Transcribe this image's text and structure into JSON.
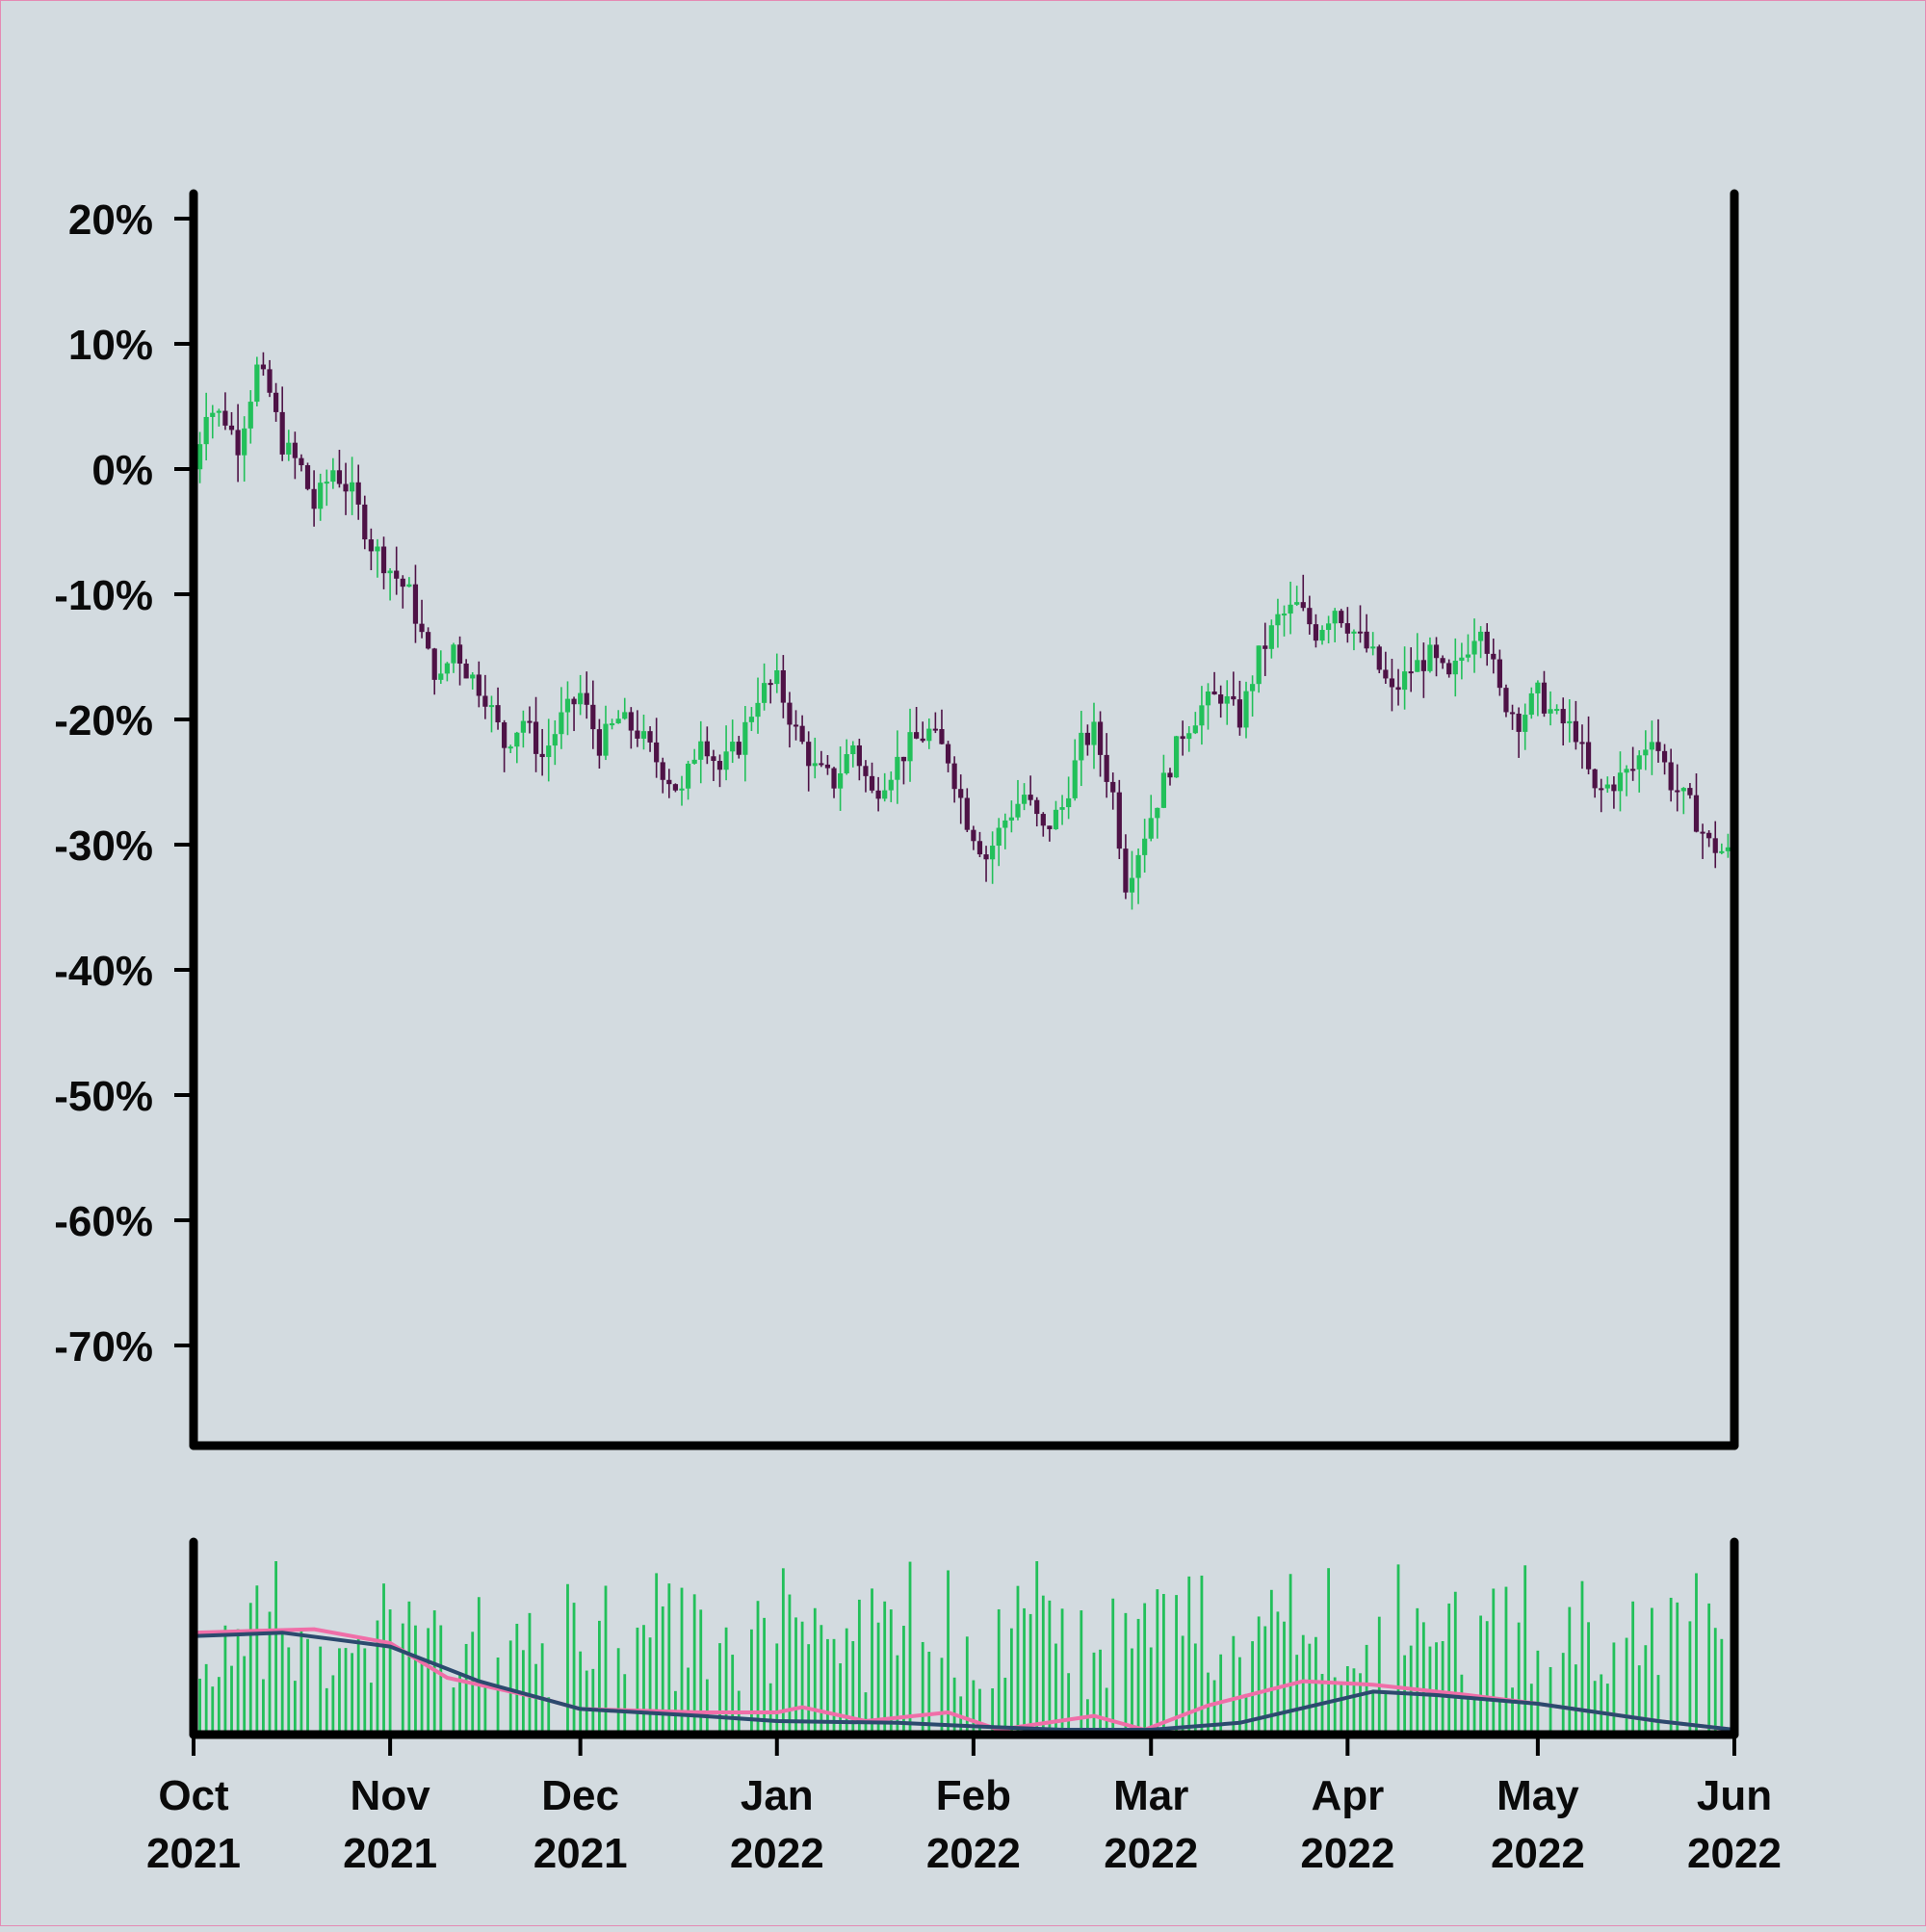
{
  "colors": {
    "background": "#d3dbe0",
    "border": "#e48ab4",
    "axis": "#000000",
    "up": "#22c05a",
    "down": "#4e1246",
    "volume": "#22c05a",
    "ma_fast": "#f06ea8",
    "ma_slow": "#2c4a6e"
  },
  "chart_data": [
    {
      "type": "candlestick",
      "title": "",
      "xlabel": "",
      "ylabel": "",
      "x_range": [
        "2021-10-01",
        "2022-06-01"
      ],
      "ylim": [
        -78,
        22
      ],
      "y_ticks": [
        20,
        10,
        0,
        -10,
        -20,
        -30,
        -40,
        -50,
        -60,
        -70
      ],
      "y_tick_labels": [
        "20%",
        "10%",
        "0%",
        "-10%",
        "-20%",
        "-30%",
        "-40%",
        "-50%",
        "-60%",
        "-70%"
      ],
      "x_ticks": [
        "2021-10-01",
        "2021-11-01",
        "2021-12-01",
        "2022-01-01",
        "2022-02-01",
        "2022-03-01",
        "2022-04-01",
        "2022-05-01",
        "2022-06-01"
      ],
      "x_tick_labels": [
        [
          "Oct",
          "2021"
        ],
        [
          "Nov",
          "2021"
        ],
        [
          "Dec",
          "2021"
        ],
        [
          "Jan",
          "2022"
        ],
        [
          "Feb",
          "2022"
        ],
        [
          "Mar",
          "2022"
        ],
        [
          "Apr",
          "2022"
        ],
        [
          "May",
          "2022"
        ],
        [
          "Jun",
          "2022"
        ]
      ],
      "grid": false,
      "close_path": [
        [
          "2021-10-01",
          0
        ],
        [
          "2021-10-03",
          5
        ],
        [
          "2021-10-06",
          4
        ],
        [
          "2021-10-08",
          2
        ],
        [
          "2021-10-11",
          8
        ],
        [
          "2021-10-13",
          6
        ],
        [
          "2021-10-15",
          2
        ],
        [
          "2021-10-18",
          0
        ],
        [
          "2021-10-20",
          -3
        ],
        [
          "2021-10-23",
          0
        ],
        [
          "2021-10-26",
          -2
        ],
        [
          "2021-10-29",
          -6
        ],
        [
          "2021-11-01",
          -8
        ],
        [
          "2021-11-04",
          -10
        ],
        [
          "2021-11-07",
          -15
        ],
        [
          "2021-11-09",
          -17
        ],
        [
          "2021-11-11",
          -14
        ],
        [
          "2021-11-13",
          -16
        ],
        [
          "2021-11-16",
          -18
        ],
        [
          "2021-11-19",
          -22
        ],
        [
          "2021-11-22",
          -20
        ],
        [
          "2021-11-25",
          -23
        ],
        [
          "2021-11-28",
          -20
        ],
        [
          "2021-12-01",
          -18
        ],
        [
          "2021-12-04",
          -22
        ],
        [
          "2021-12-07",
          -20
        ],
        [
          "2021-12-10",
          -21
        ],
        [
          "2021-12-14",
          -24
        ],
        [
          "2021-12-17",
          -26
        ],
        [
          "2021-12-20",
          -21
        ],
        [
          "2021-12-23",
          -24
        ],
        [
          "2021-12-26",
          -22
        ],
        [
          "2021-12-29",
          -18
        ],
        [
          "2022-01-01",
          -17
        ],
        [
          "2022-01-04",
          -21
        ],
        [
          "2022-01-07",
          -24
        ],
        [
          "2022-01-10",
          -25
        ],
        [
          "2022-01-13",
          -22
        ],
        [
          "2022-01-16",
          -26
        ],
        [
          "2022-01-19",
          -24
        ],
        [
          "2022-01-22",
          -22
        ],
        [
          "2022-01-25",
          -21
        ],
        [
          "2022-01-28",
          -23
        ],
        [
          "2022-01-31",
          -28
        ],
        [
          "2022-02-03",
          -31
        ],
        [
          "2022-02-06",
          -28
        ],
        [
          "2022-02-09",
          -26
        ],
        [
          "2022-02-12",
          -29
        ],
        [
          "2022-02-15",
          -27
        ],
        [
          "2022-02-18",
          -22
        ],
        [
          "2022-02-20",
          -21
        ],
        [
          "2022-02-23",
          -26
        ],
        [
          "2022-02-25",
          -33
        ],
        [
          "2022-02-28",
          -29
        ],
        [
          "2022-03-03",
          -25
        ],
        [
          "2022-03-06",
          -21
        ],
        [
          "2022-03-09",
          -19
        ],
        [
          "2022-03-12",
          -18
        ],
        [
          "2022-03-15",
          -20
        ],
        [
          "2022-03-18",
          -15
        ],
        [
          "2022-03-21",
          -12
        ],
        [
          "2022-03-24",
          -11
        ],
        [
          "2022-03-27",
          -13
        ],
        [
          "2022-03-30",
          -11
        ],
        [
          "2022-04-02",
          -13
        ],
        [
          "2022-04-05",
          -15
        ],
        [
          "2022-04-08",
          -18
        ],
        [
          "2022-04-11",
          -16
        ],
        [
          "2022-04-14",
          -15
        ],
        [
          "2022-04-17",
          -17
        ],
        [
          "2022-04-20",
          -14
        ],
        [
          "2022-04-22",
          -12
        ],
        [
          "2022-04-25",
          -18
        ],
        [
          "2022-04-28",
          -20
        ],
        [
          "2022-05-01",
          -18
        ],
        [
          "2022-05-04",
          -20
        ],
        [
          "2022-05-07",
          -21
        ],
        [
          "2022-05-10",
          -26
        ],
        [
          "2022-05-13",
          -25
        ],
        [
          "2022-05-16",
          -24
        ],
        [
          "2022-05-19",
          -21
        ],
        [
          "2022-05-22",
          -25
        ],
        [
          "2022-05-25",
          -27
        ],
        [
          "2022-05-28",
          -30
        ],
        [
          "2022-06-01",
          -31
        ]
      ]
    },
    {
      "type": "bar",
      "title": "",
      "xlabel": "",
      "ylabel": "",
      "series": [
        {
          "kind": "bar",
          "values_description_note": ""
        },
        {
          "kind": "line",
          "color_key": "ma_fast",
          "points": [
            [
              "2021-10-01",
              0.56
            ],
            [
              "2021-10-20",
              0.58
            ],
            [
              "2021-11-01",
              0.5
            ],
            [
              "2021-11-10",
              0.3
            ],
            [
              "2021-11-25",
              0.18
            ],
            [
              "2021-12-01",
              0.12
            ],
            [
              "2021-12-20",
              0.1
            ],
            [
              "2022-01-01",
              0.1
            ],
            [
              "2022-01-05",
              0.13
            ],
            [
              "2022-01-15",
              0.05
            ],
            [
              "2022-01-28",
              0.1
            ],
            [
              "2022-02-05",
              0.0
            ],
            [
              "2022-02-20",
              0.08
            ],
            [
              "2022-02-28",
              0.0
            ],
            [
              "2022-03-10",
              0.14
            ],
            [
              "2022-03-25",
              0.28
            ],
            [
              "2022-04-05",
              0.26
            ],
            [
              "2022-04-20",
              0.2
            ],
            [
              "2022-05-01",
              0.15
            ],
            [
              "2022-05-20",
              0.05
            ],
            [
              "2022-06-01",
              0.0
            ]
          ]
        },
        {
          "kind": "line",
          "color_key": "ma_slow",
          "points": [
            [
              "2021-10-01",
              0.54
            ],
            [
              "2021-10-15",
              0.56
            ],
            [
              "2021-11-01",
              0.48
            ],
            [
              "2021-11-15",
              0.28
            ],
            [
              "2021-12-01",
              0.12
            ],
            [
              "2021-12-20",
              0.08
            ],
            [
              "2022-01-01",
              0.05
            ],
            [
              "2022-01-20",
              0.04
            ],
            [
              "2022-02-01",
              0.02
            ],
            [
              "2022-02-15",
              0.0
            ],
            [
              "2022-03-01",
              0.0
            ],
            [
              "2022-03-15",
              0.04
            ],
            [
              "2022-04-05",
              0.22
            ],
            [
              "2022-04-15",
              0.2
            ],
            [
              "2022-05-01",
              0.15
            ],
            [
              "2022-05-20",
              0.05
            ],
            [
              "2022-06-01",
              0.0
            ]
          ]
        }
      ],
      "bar_pattern": [
        0.4,
        0.1,
        0.05,
        0.3,
        0.2,
        0.6,
        0.15,
        0.7,
        0.25,
        0.45,
        0.8,
        0.35,
        0.55,
        0.9,
        0.5,
        0.65,
        0.2,
        0.75,
        0.4,
        0.85
      ]
    }
  ]
}
